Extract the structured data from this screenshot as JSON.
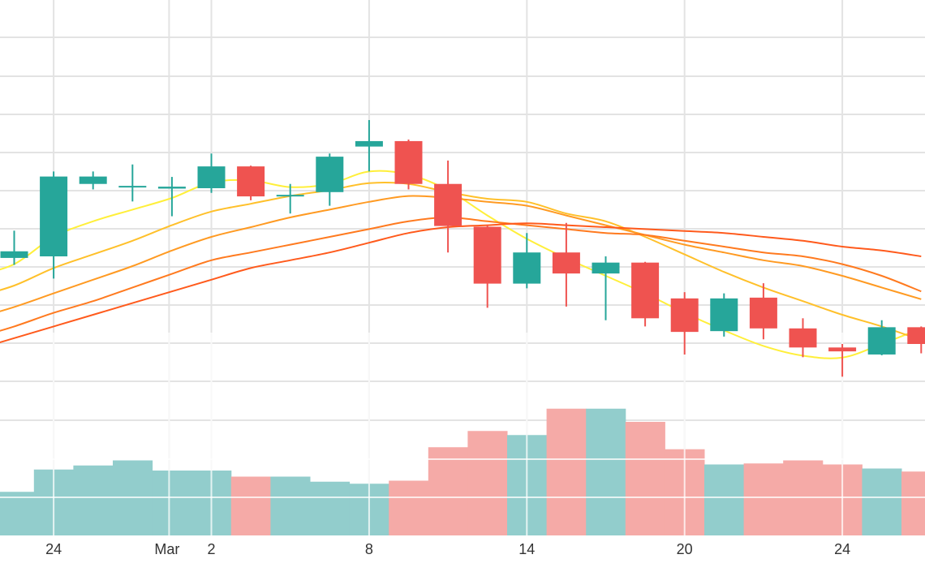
{
  "colors": {
    "up": "#26a69a",
    "down": "#ef5350",
    "up_volume": "#92cdcc",
    "down_volume": "#f5aaa7",
    "grid": "#e3e3e3",
    "ma_colors": [
      "#ffef3a",
      "#ffc02a",
      "#ff9a22",
      "#ff7a1f",
      "#ff5a1c"
    ]
  },
  "chart_data": {
    "type": "candlestick",
    "grid": true,
    "legend": "none",
    "x_axis": {
      "ticks": [
        {
          "slot": 1,
          "label": "24"
        },
        {
          "slot": 4,
          "label": "Mar"
        },
        {
          "slot": 5,
          "label": "2"
        },
        {
          "slot": 9,
          "label": "8"
        },
        {
          "slot": 13,
          "label": "14"
        },
        {
          "slot": 17,
          "label": "20"
        },
        {
          "slot": 21,
          "label": "24"
        }
      ]
    },
    "price_range": [
      0,
      100
    ],
    "volume_range": [
      0,
      100
    ],
    "candles": [
      {
        "slot": 0,
        "open": 42.1,
        "close": 43.8,
        "high": 49.1,
        "low": 40.3,
        "volume": 21.5
      },
      {
        "slot": 1,
        "open": 42.5,
        "close": 63.0,
        "high": 64.3,
        "low": 36.8,
        "volume": 32.5
      },
      {
        "slot": 2,
        "open": 61.1,
        "close": 63.0,
        "high": 64.3,
        "low": 59.7,
        "volume": 34.5
      },
      {
        "slot": 3,
        "open": 60.3,
        "close": 60.6,
        "high": 66.1,
        "low": 56.6,
        "volume": 37.0
      },
      {
        "slot": 4,
        "open": 59.9,
        "close": 60.4,
        "high": 62.9,
        "low": 52.8,
        "volume": 32.0
      },
      {
        "slot": 5,
        "open": 60.0,
        "close": 65.6,
        "high": 68.9,
        "low": 58.8,
        "volume": 32.0
      },
      {
        "slot": 6,
        "open": 65.6,
        "close": 57.9,
        "high": 65.8,
        "low": 56.9,
        "volume": 29.0
      },
      {
        "slot": 7,
        "open": 58.0,
        "close": 58.3,
        "high": 61.1,
        "low": 53.5,
        "volume": 29.0
      },
      {
        "slot": 8,
        "open": 59.0,
        "close": 68.1,
        "high": 68.9,
        "low": 55.5,
        "volume": 26.5
      },
      {
        "slot": 9,
        "open": 70.7,
        "close": 72.1,
        "high": 77.5,
        "low": 64.3,
        "volume": 25.5
      },
      {
        "slot": 10,
        "open": 72.1,
        "close": 61.1,
        "high": 72.5,
        "low": 59.7,
        "volume": 27.0
      },
      {
        "slot": 11,
        "open": 61.1,
        "close": 50.3,
        "high": 67.1,
        "low": 43.5,
        "volume": 43.5
      },
      {
        "slot": 12,
        "open": 50.1,
        "close": 35.5,
        "high": 50.5,
        "low": 29.3,
        "volume": 51.5
      },
      {
        "slot": 13,
        "open": 35.5,
        "close": 43.5,
        "high": 48.5,
        "low": 34.3,
        "volume": 49.5
      },
      {
        "slot": 14,
        "open": 43.5,
        "close": 38.1,
        "high": 51.1,
        "low": 29.6,
        "volume": 62.5
      },
      {
        "slot": 15,
        "open": 38.1,
        "close": 40.9,
        "high": 42.5,
        "low": 26.1,
        "volume": 62.5
      },
      {
        "slot": 16,
        "open": 40.9,
        "close": 26.6,
        "high": 41.1,
        "low": 24.5,
        "volume": 56.0
      },
      {
        "slot": 17,
        "open": 31.7,
        "close": 23.1,
        "high": 33.3,
        "low": 17.3,
        "volume": 42.5
      },
      {
        "slot": 18,
        "open": 23.3,
        "close": 31.7,
        "high": 33.0,
        "low": 21.9,
        "volume": 35.0
      },
      {
        "slot": 19,
        "open": 31.9,
        "close": 24.0,
        "high": 35.6,
        "low": 21.2,
        "volume": 35.5
      },
      {
        "slot": 20,
        "open": 24.0,
        "close": 19.1,
        "high": 26.6,
        "low": 16.6,
        "volume": 37.0
      },
      {
        "slot": 21,
        "open": 19.1,
        "close": 18.1,
        "high": 20.0,
        "low": 11.6,
        "volume": 35.0
      },
      {
        "slot": 22,
        "open": 17.3,
        "close": 24.3,
        "high": 26.1,
        "low": 17.1,
        "volume": 33.0
      },
      {
        "slot": 23,
        "open": 24.3,
        "close": 20.0,
        "high": 24.5,
        "low": 17.6,
        "volume": 31.5
      }
    ],
    "moving_averages": [
      {
        "points": [
          [
            -1,
            37.5
          ],
          [
            0,
            40.5
          ],
          [
            1,
            47.5
          ],
          [
            2,
            51.5
          ],
          [
            3,
            54.5
          ],
          [
            4,
            57.5
          ],
          [
            5,
            61.5
          ],
          [
            6,
            62.0
          ],
          [
            7,
            60.3
          ],
          [
            8,
            61.1
          ],
          [
            9,
            64.3
          ],
          [
            10,
            63.5
          ],
          [
            11,
            59.5
          ],
          [
            12,
            53.0
          ],
          [
            13,
            47.0
          ],
          [
            14,
            42.0
          ],
          [
            15,
            37.5
          ],
          [
            16,
            33.0
          ],
          [
            17,
            28.0
          ],
          [
            18,
            23.5
          ],
          [
            19,
            19.5
          ],
          [
            20,
            17.0
          ],
          [
            21,
            16.5
          ],
          [
            22,
            20.0
          ],
          [
            23,
            24.0
          ]
        ]
      },
      {
        "points": [
          [
            -1,
            32.0
          ],
          [
            0,
            35.0
          ],
          [
            1,
            39.5
          ],
          [
            2,
            43.0
          ],
          [
            3,
            46.5
          ],
          [
            4,
            50.5
          ],
          [
            5,
            54.0
          ],
          [
            6,
            56.0
          ],
          [
            7,
            58.0
          ],
          [
            8,
            59.5
          ],
          [
            9,
            61.3
          ],
          [
            10,
            61.1
          ],
          [
            11,
            59.0
          ],
          [
            12,
            57.3
          ],
          [
            13,
            56.5
          ],
          [
            14,
            53.5
          ],
          [
            15,
            51.5
          ],
          [
            16,
            47.5
          ],
          [
            17,
            43.0
          ],
          [
            18,
            38.5
          ],
          [
            19,
            34.5
          ],
          [
            20,
            31.0
          ],
          [
            21,
            27.5
          ],
          [
            22,
            24.5
          ],
          [
            23,
            21.0
          ]
        ]
      },
      {
        "points": [
          [
            -1,
            26.5
          ],
          [
            0,
            29.5
          ],
          [
            1,
            33.0
          ],
          [
            2,
            36.5
          ],
          [
            3,
            40.0
          ],
          [
            4,
            44.0
          ],
          [
            5,
            47.5
          ],
          [
            6,
            50.0
          ],
          [
            7,
            52.5
          ],
          [
            8,
            54.5
          ],
          [
            9,
            56.5
          ],
          [
            10,
            58.0
          ],
          [
            11,
            57.5
          ],
          [
            12,
            56.5
          ],
          [
            13,
            55.5
          ],
          [
            14,
            53.0
          ],
          [
            15,
            50.5
          ],
          [
            16,
            48.0
          ],
          [
            17,
            45.5
          ],
          [
            18,
            43.5
          ],
          [
            19,
            41.5
          ],
          [
            20,
            40.0
          ],
          [
            21,
            37.5
          ],
          [
            22,
            34.5
          ],
          [
            23,
            31.5
          ]
        ]
      },
      {
        "points": [
          [
            -1,
            21.5
          ],
          [
            0,
            24.5
          ],
          [
            1,
            28.0
          ],
          [
            2,
            31.0
          ],
          [
            3,
            34.5
          ],
          [
            4,
            38.0
          ],
          [
            5,
            41.5
          ],
          [
            6,
            43.5
          ],
          [
            7,
            45.5
          ],
          [
            8,
            47.5
          ],
          [
            9,
            49.5
          ],
          [
            10,
            51.5
          ],
          [
            11,
            52.5
          ],
          [
            12,
            51.5
          ],
          [
            13,
            50.5
          ],
          [
            14,
            49.5
          ],
          [
            15,
            48.5
          ],
          [
            16,
            48.0
          ],
          [
            17,
            46.5
          ],
          [
            18,
            45.0
          ],
          [
            19,
            43.5
          ],
          [
            20,
            42.5
          ],
          [
            21,
            40.5
          ],
          [
            22,
            37.5
          ],
          [
            23,
            33.5
          ]
        ]
      },
      {
        "points": [
          [
            -1,
            18.5
          ],
          [
            0,
            21.5
          ],
          [
            1,
            24.5
          ],
          [
            2,
            27.5
          ],
          [
            3,
            30.5
          ],
          [
            4,
            33.5
          ],
          [
            5,
            36.5
          ],
          [
            6,
            39.5
          ],
          [
            7,
            41.5
          ],
          [
            8,
            43.5
          ],
          [
            9,
            46.0
          ],
          [
            10,
            48.5
          ],
          [
            11,
            50.0
          ],
          [
            12,
            50.5
          ],
          [
            13,
            51.0
          ],
          [
            14,
            50.5
          ],
          [
            15,
            50.0
          ],
          [
            16,
            49.5
          ],
          [
            17,
            49.0
          ],
          [
            18,
            48.5
          ],
          [
            19,
            47.5
          ],
          [
            20,
            46.5
          ],
          [
            21,
            45.0
          ],
          [
            22,
            44.0
          ],
          [
            23,
            42.5
          ]
        ]
      }
    ]
  }
}
